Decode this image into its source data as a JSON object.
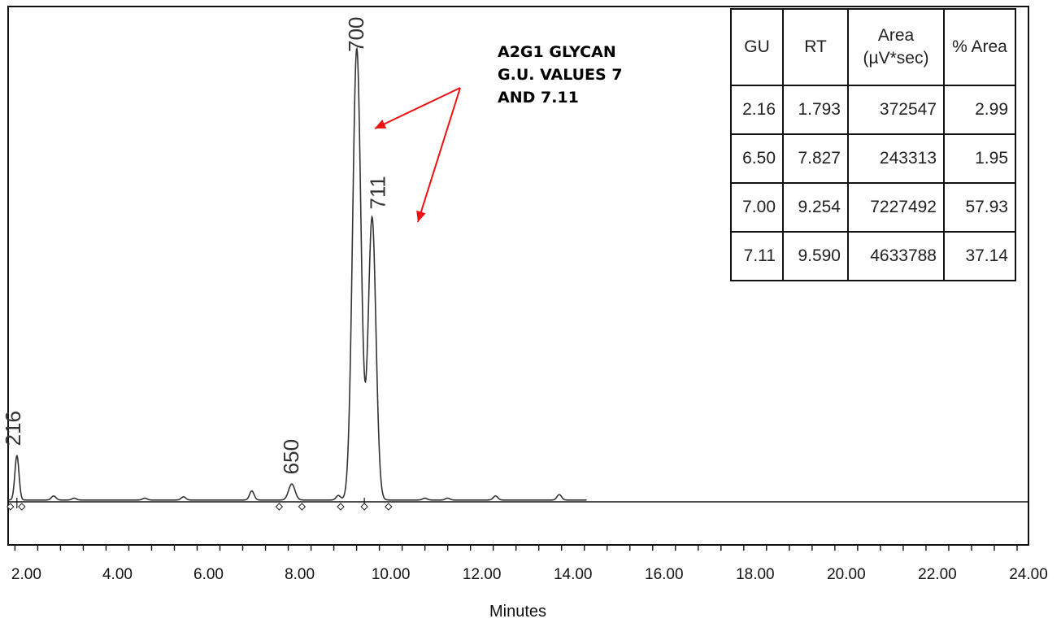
{
  "chart_data": {
    "type": "line",
    "xlabel": "Minutes",
    "ylabel": "",
    "xlim": [
      1.6,
      24.0
    ],
    "x_ticks": [
      "2.00",
      "4.00",
      "6.00",
      "8.00",
      "10.00",
      "12.00",
      "14.00",
      "16.00",
      "18.00",
      "20.00",
      "22.00",
      "24.00"
    ],
    "grid": false,
    "baseline": 0,
    "ylim": [
      -0.09,
      1.03
    ],
    "peaks": [
      {
        "label": "216",
        "rt": 1.793,
        "height": 0.0984
      },
      {
        "label": "650",
        "rt": 7.827,
        "height": 0.0354
      },
      {
        "label": "700",
        "rt": 9.254,
        "height": 1.0
      },
      {
        "label": "711",
        "rt": 9.59,
        "height": 0.626
      }
    ],
    "minor_peaks": [
      {
        "rt": 2.6,
        "height": 0.009
      },
      {
        "rt": 3.05,
        "height": 0.004
      },
      {
        "rt": 4.6,
        "height": 0.004
      },
      {
        "rt": 5.45,
        "height": 0.007
      },
      {
        "rt": 6.95,
        "height": 0.02
      },
      {
        "rt": 8.85,
        "height": 0.01
      },
      {
        "rt": 10.75,
        "height": 0.004
      },
      {
        "rt": 11.25,
        "height": 0.004
      },
      {
        "rt": 12.3,
        "height": 0.009
      },
      {
        "rt": 13.7,
        "height": 0.012
      }
    ],
    "integration_markers": [
      1.65,
      1.9,
      7.55,
      8.05,
      8.9,
      9.42,
      9.95
    ]
  },
  "table": {
    "headers": [
      "GU",
      "RT",
      "Area (µV*sec)",
      "% Area"
    ],
    "header_area_line1": "Area",
    "header_area_line2": "(µV*sec)",
    "rows": [
      [
        "2.16",
        "1.793",
        "372547",
        "2.99"
      ],
      [
        "6.50",
        "7.827",
        "243313",
        "1.95"
      ],
      [
        "7.00",
        "9.254",
        "7227492",
        "57.93"
      ],
      [
        "7.11",
        "9.590",
        "4633788",
        "37.14"
      ]
    ]
  },
  "annotation": {
    "lines": [
      "A2G1 GLYCAN",
      "G.U. VALUES 7",
      "AND 7.11"
    ]
  },
  "colors": {
    "trace": "#333333",
    "arrow": "#ee1111",
    "frame": "#111111"
  }
}
